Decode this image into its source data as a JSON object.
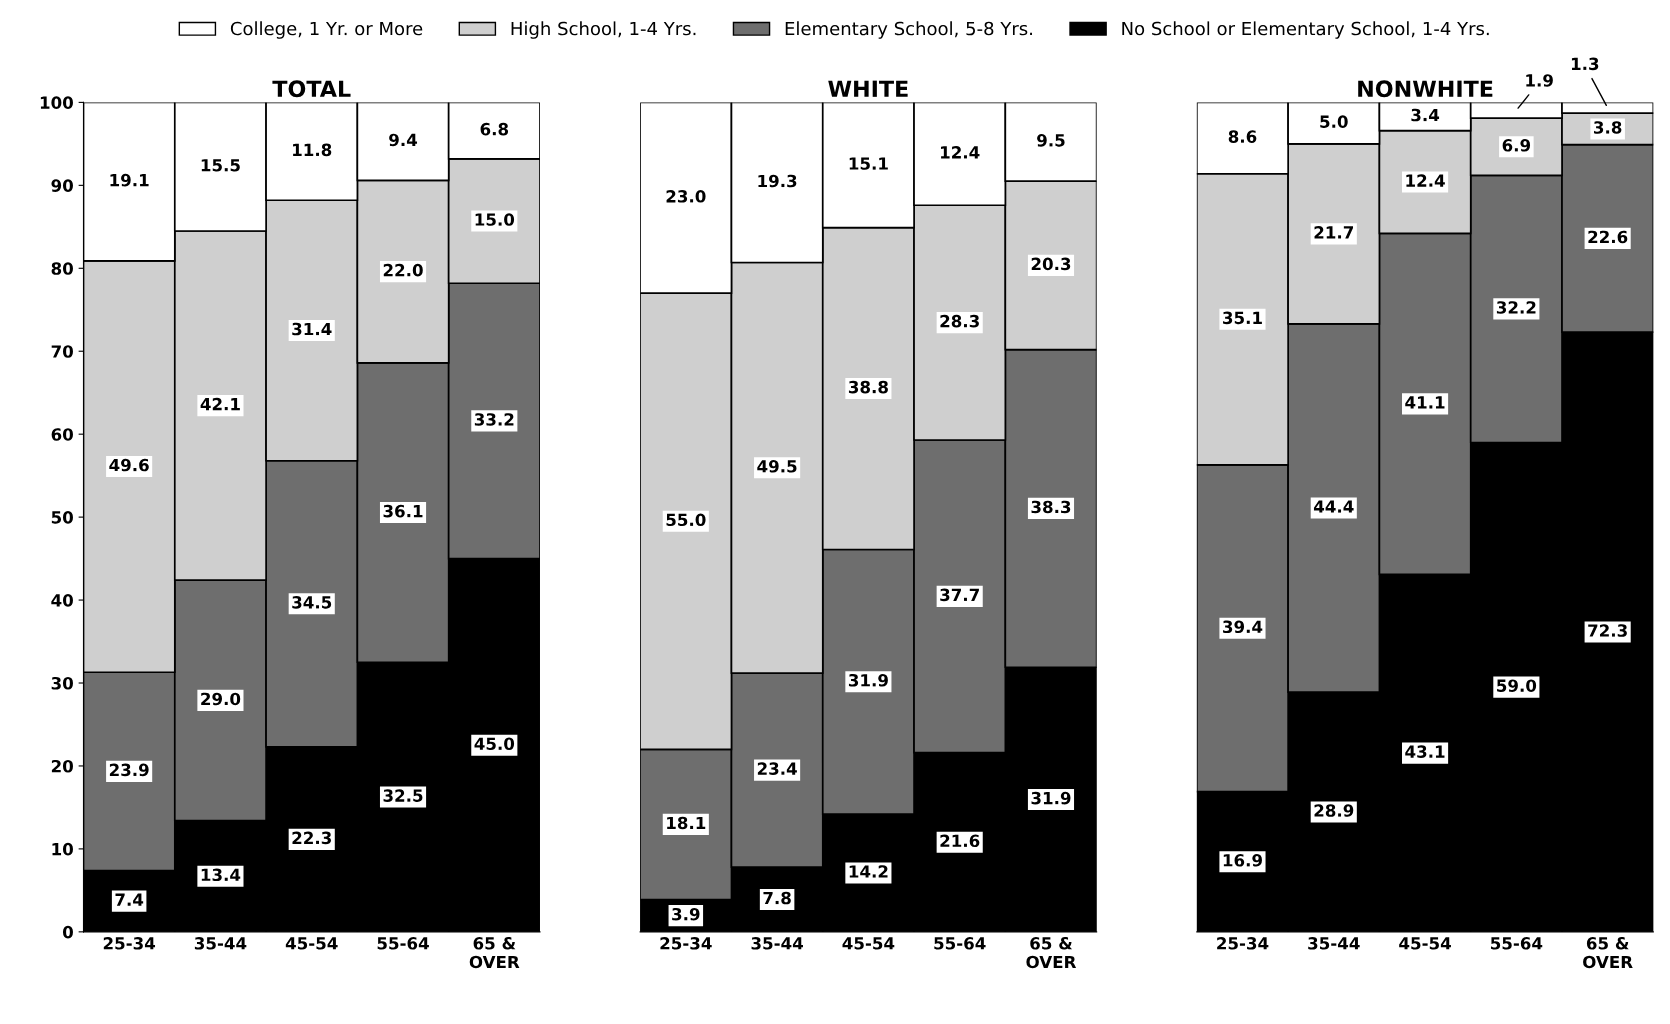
{
  "chart_data": [
    {
      "type": "bar",
      "title": "TOTAL",
      "stacked": true,
      "legend": "top",
      "grid": false,
      "categories": [
        "25-34",
        "35-44",
        "45-54",
        "55-64",
        "65 &\nOVER"
      ],
      "ylim": [
        0,
        100
      ],
      "yticks": [
        0,
        10,
        20,
        30,
        40,
        50,
        60,
        70,
        80,
        90,
        100
      ],
      "series": [
        {
          "name": "No School or Elementary School, 1-4 Yrs.",
          "color": "#000000",
          "values": [
            7.4,
            13.4,
            22.3,
            32.5,
            45.0
          ],
          "value_labels": [
            "7.4",
            "13.4",
            "22.3",
            "32.5",
            "45.0"
          ]
        },
        {
          "name": "Elementary School, 5-8 Yrs.",
          "color": "#6e6e6e",
          "values": [
            23.9,
            29.0,
            34.5,
            36.1,
            33.2
          ],
          "value_labels": [
            "23.9",
            "29.0",
            "34.5",
            "36.1",
            "33.2"
          ]
        },
        {
          "name": "High School, 1-4 Yrs.",
          "color": "#cfcfcf",
          "values": [
            49.6,
            42.1,
            31.4,
            22.0,
            15.0
          ],
          "value_labels": [
            "49.6",
            "42.1",
            "31.4",
            "22.0",
            "15.0"
          ]
        },
        {
          "name": "College, 1 Yr. or More",
          "color": "#ffffff",
          "values": [
            19.1,
            15.5,
            11.8,
            9.4,
            6.8
          ],
          "value_labels": [
            "19.1",
            "15.5",
            "11.8",
            "9.4",
            "6.8"
          ]
        }
      ]
    },
    {
      "type": "bar",
      "title": "WHITE",
      "stacked": true,
      "grid": false,
      "tick_labels": "x",
      "categories": [
        "25-34",
        "35-44",
        "45-54",
        "55-64",
        "65 &\nOVER"
      ],
      "ylim": [
        0,
        100
      ],
      "series": [
        {
          "color": "#000000",
          "values": [
            3.9,
            7.8,
            14.2,
            21.6,
            31.9
          ],
          "value_labels": [
            "3.9",
            "7.8",
            "14.2",
            "21.6",
            "31.9"
          ]
        },
        {
          "color": "#6e6e6e",
          "values": [
            18.1,
            23.4,
            31.9,
            37.7,
            38.3
          ],
          "value_labels": [
            "18.1",
            "23.4",
            "31.9",
            "37.7",
            "38.3"
          ]
        },
        {
          "color": "#cfcfcf",
          "values": [
            55.0,
            49.5,
            38.8,
            28.3,
            20.3
          ],
          "value_labels": [
            "55.0",
            "49.5",
            "38.8",
            "28.3",
            "20.3"
          ]
        },
        {
          "color": "#ffffff",
          "values": [
            23.0,
            19.3,
            15.1,
            12.4,
            9.5
          ],
          "value_labels": [
            "23.0",
            "19.3",
            "15.1",
            "12.4",
            "9.5"
          ]
        }
      ]
    },
    {
      "type": "bar",
      "title": "NONWHITE",
      "stacked": true,
      "grid": false,
      "tick_labels": "x",
      "categories": [
        "25-34",
        "35-44",
        "45-54",
        "55-64",
        "65 &\nOVER"
      ],
      "ylim": [
        0,
        100
      ],
      "series": [
        {
          "color": "#000000",
          "values": [
            16.9,
            28.9,
            43.1,
            59.0,
            72.3
          ],
          "value_labels": [
            "16.9",
            "28.9",
            "43.1",
            "59.0",
            "72.3"
          ]
        },
        {
          "color": "#6e6e6e",
          "values": [
            39.4,
            44.4,
            41.1,
            32.2,
            22.6
          ],
          "value_labels": [
            "39.4",
            "44.4",
            "41.1",
            "32.2",
            "22.6"
          ]
        },
        {
          "color": "#cfcfcf",
          "values": [
            35.1,
            21.7,
            12.4,
            6.9,
            3.8
          ],
          "value_labels": [
            "35.1",
            "21.7",
            "12.4",
            "6.9",
            "3.8"
          ]
        },
        {
          "color": "#ffffff",
          "values": [
            8.6,
            5.0,
            3.4,
            1.9,
            1.3
          ],
          "value_labels": [
            "8.6",
            "5.0",
            "3.4",
            "1.9",
            "1.3"
          ]
        }
      ]
    }
  ]
}
